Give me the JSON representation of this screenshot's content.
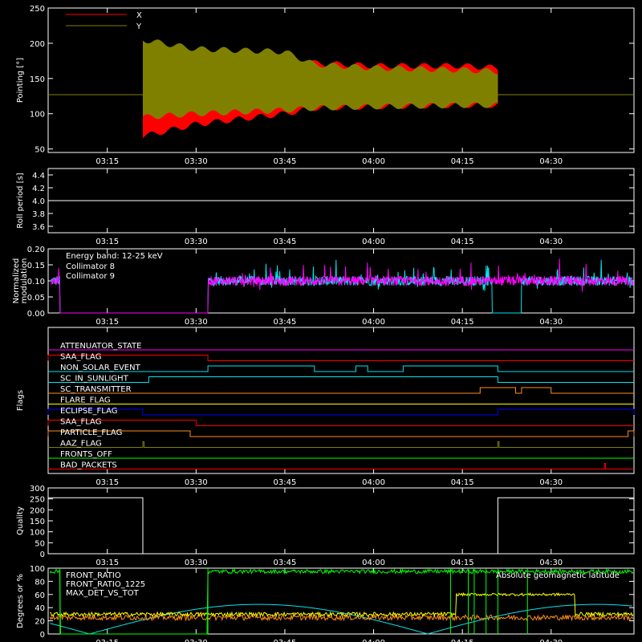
{
  "colors": {
    "background": "#000000",
    "axis": "#ffffff",
    "red": "#ff0000",
    "olive": "#808000",
    "cyan": "#00e5ee",
    "magenta": "#ff00ff",
    "orange": "#ff8c1a",
    "yellow": "#ffff00",
    "green": "#00ff00",
    "blue": "#0000ff",
    "lime": "#7cfc00"
  },
  "time_axis": {
    "range": [
      "03:05",
      "04:44"
    ],
    "ticks": [
      "03:15",
      "03:30",
      "03:45",
      "04:00",
      "04:15",
      "04:30"
    ]
  },
  "chart_data": [
    {
      "type": "area",
      "id": "pointing",
      "ylabel": "Pointing [°]",
      "ylim": [
        45,
        250
      ],
      "yticks": [
        50,
        100,
        150,
        200,
        250
      ],
      "grid": false,
      "legend": "top-left",
      "series": [
        {
          "name": "X",
          "color": "#ff0000",
          "baseline": 127,
          "active_window": [
            "03:21",
            "04:21"
          ],
          "upper_envelope": [
            [
              "03:21",
              195
            ],
            [
              "03:30",
              188
            ],
            [
              "03:45",
              180
            ],
            [
              "03:50",
              172
            ],
            [
              "04:00",
              168
            ],
            [
              "04:15",
              168
            ],
            [
              "04:21",
              165
            ]
          ],
          "lower_envelope": [
            [
              "03:21",
              68
            ],
            [
              "03:30",
              85
            ],
            [
              "03:45",
              100
            ],
            [
              "03:50",
              108
            ],
            [
              "04:00",
              110
            ],
            [
              "04:15",
              112
            ],
            [
              "04:21",
              112
            ]
          ]
        },
        {
          "name": "Y",
          "color": "#808000",
          "baseline": 127,
          "active_window": [
            "03:21",
            "04:21"
          ],
          "upper_envelope": [
            [
              "03:21",
              205
            ],
            [
              "03:30",
              192
            ],
            [
              "03:45",
              188
            ],
            [
              "03:50",
              170
            ],
            [
              "04:00",
              165
            ],
            [
              "04:15",
              162
            ],
            [
              "04:21",
              160
            ]
          ],
          "lower_envelope": [
            [
              "03:21",
              95
            ],
            [
              "03:30",
              100
            ],
            [
              "03:45",
              105
            ],
            [
              "03:50",
              108
            ],
            [
              "04:00",
              110
            ],
            [
              "04:15",
              112
            ],
            [
              "04:21",
              112
            ]
          ]
        }
      ]
    },
    {
      "type": "line",
      "id": "roll",
      "ylabel": "Roll period [s]",
      "ylim": [
        3.5,
        4.5
      ],
      "yticks": [
        "3.6",
        "3.8",
        "4.0",
        "4.2",
        "4.4"
      ],
      "series": [
        {
          "value": 4.0,
          "color": "#ffffff"
        }
      ]
    },
    {
      "type": "line",
      "id": "modulation",
      "ylabel": "Normalized modulation",
      "ylim": [
        0,
        0.2
      ],
      "yticks": [
        "0.00",
        "0.05",
        "0.10",
        "0.15",
        "0.20"
      ],
      "annotation": "Energy band: 12-25 keV",
      "legend": "top-left",
      "series": [
        {
          "name": "Collimator 8",
          "color": "#00e5ee",
          "mean": 0.1,
          "active_window": [
            "03:06",
            "04:44"
          ],
          "zero_window": [
            "03:07",
            "03:32"
          ],
          "dips": [
            [
              "04:20",
              "04:25"
            ]
          ]
        },
        {
          "name": "Collimator 9",
          "color": "#ff00ff",
          "mean": 0.1,
          "active_window": [
            "03:06",
            "04:44"
          ],
          "zero_window": [
            "03:07",
            "03:32"
          ]
        }
      ]
    },
    {
      "type": "line",
      "id": "flags",
      "ylabel": "Flags",
      "series": [
        {
          "name": "ATTENUATOR_STATE",
          "color": "#ff00ff",
          "steps": []
        },
        {
          "name": "SAA_FLAG",
          "color": "#ff0000",
          "steps": [
            [
              "03:05",
              "03:32"
            ]
          ]
        },
        {
          "name": "NON_SOLAR_EVENT",
          "color": "#00e5ee",
          "steps": [
            [
              "03:32",
              "03:50"
            ],
            [
              "03:57",
              "03:59"
            ],
            [
              "04:05",
              "04:21"
            ]
          ]
        },
        {
          "name": "SC_IN_SUNLIGHT",
          "color": "#00e5ee",
          "steps": [
            [
              "03:22",
              "04:21"
            ]
          ]
        },
        {
          "name": "SC_TRANSMITTER",
          "color": "#ff8c1a",
          "steps": [
            [
              "04:18",
              "04:24"
            ],
            [
              "04:25",
              "04:30"
            ]
          ]
        },
        {
          "name": "FLARE_FLAG",
          "color": "#ffff00",
          "steps": []
        },
        {
          "name": "ECLIPSE_FLAG",
          "color": "#0000ff",
          "steps": [
            [
              "03:05",
              "03:21"
            ],
            [
              "04:21",
              "04:44"
            ]
          ]
        },
        {
          "name": "SAA_FLAG",
          "color": "#ff0000",
          "steps": [
            [
              "03:05",
              "03:30"
            ]
          ]
        },
        {
          "name": "PARTICLE_FLAG",
          "color": "#ff8c1a",
          "steps": [
            [
              "03:05",
              "03:29"
            ],
            [
              "04:43",
              "04:44"
            ]
          ]
        },
        {
          "name": "AAZ_FLAG",
          "color": "#808000",
          "steps": [
            [
              "03:21",
              "03:21"
            ],
            [
              "04:21",
              "04:21"
            ]
          ]
        },
        {
          "name": "FRONTS_OFF",
          "color": "#00ff00",
          "steps": []
        },
        {
          "name": "BAD_PACKETS",
          "color": "#ff0000",
          "steps": [
            [
              "04:39",
              "04:39"
            ]
          ]
        }
      ]
    },
    {
      "type": "line",
      "id": "quality",
      "ylabel": "Quality",
      "ylim": [
        0,
        300
      ],
      "yticks": [
        0,
        50,
        100,
        150,
        200,
        250,
        300
      ],
      "series": [
        {
          "color": "#ffffff",
          "steps": [
            [
              "03:05",
              255
            ],
            [
              "03:21",
              0
            ],
            [
              "04:21",
              255
            ],
            [
              "04:44",
              255
            ]
          ]
        }
      ]
    },
    {
      "type": "line",
      "id": "front",
      "ylabel": "Degrees or %",
      "ylim": [
        0,
        100
      ],
      "yticks": [
        0,
        20,
        40,
        60,
        80,
        100
      ],
      "legend": "top-left",
      "series": [
        {
          "name": "FRONT_RATIO",
          "color": "#ffff00"
        },
        {
          "name": "FRONT_RATIO_1225",
          "color": "#00ff00"
        },
        {
          "name": "MAX_DET_VS_TOT",
          "color": "#ff8c1a"
        },
        {
          "name": "Absolute geomagnetic latitude",
          "color": "#00e5ee"
        }
      ]
    }
  ]
}
